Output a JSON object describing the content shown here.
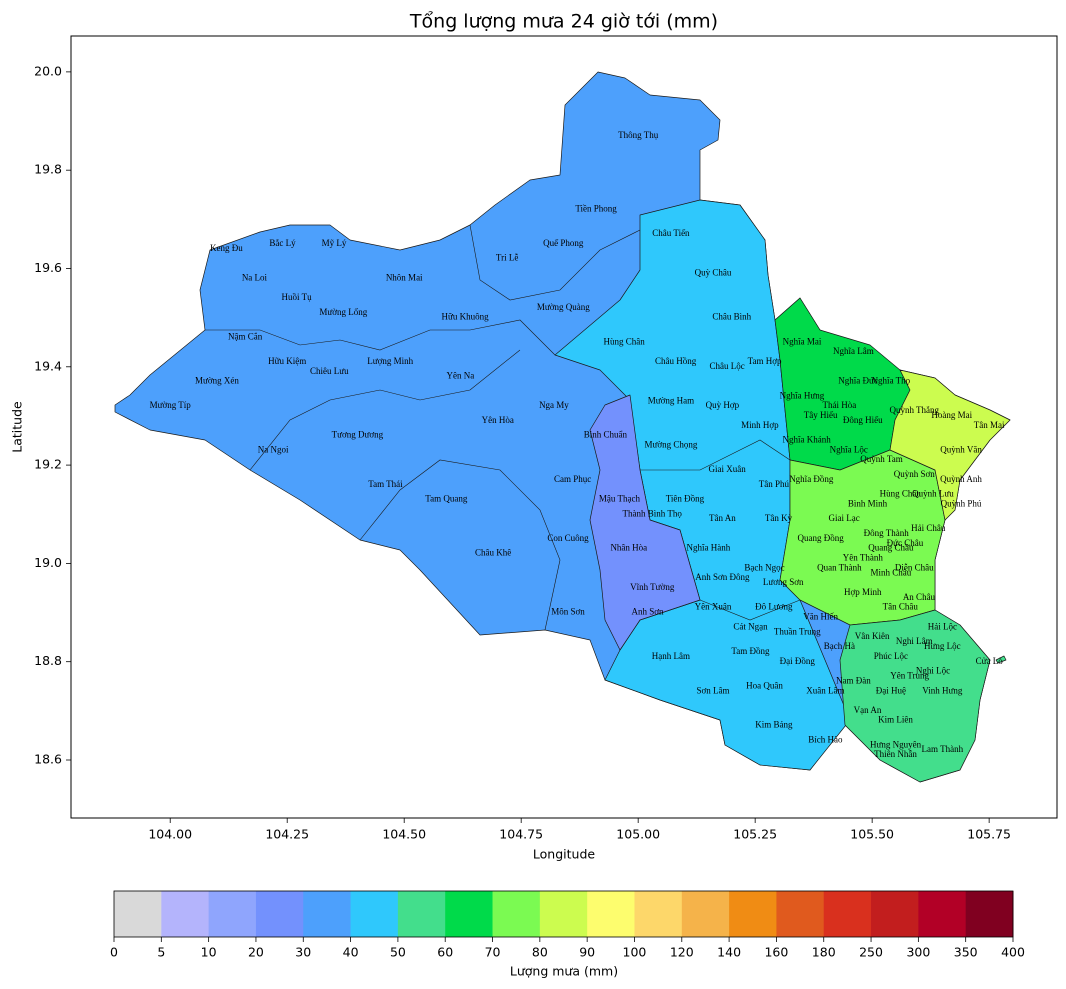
{
  "chart_data": {
    "type": "map",
    "title": "Tổng lượng mưa 24 giờ tới (mm)",
    "x_label": "Longitude",
    "y_label": "Latitude",
    "xlim": [
      103.788,
      105.895
    ],
    "ylim": [
      18.482,
      20.073
    ],
    "xticks": [
      {
        "value": 104,
        "label": "104.00"
      },
      {
        "value": 104.25,
        "label": "104.25"
      },
      {
        "value": 104.5,
        "label": "104.50"
      },
      {
        "value": 104.75,
        "label": "104.75"
      },
      {
        "value": 105,
        "label": "105.00"
      },
      {
        "value": 105.25,
        "label": "105.25"
      },
      {
        "value": 105.5,
        "label": "105.50"
      },
      {
        "value": 105.75,
        "label": "105.75"
      }
    ],
    "yticks": [
      18.6,
      18.8,
      {
        "value": 19,
        "label": "19.0"
      },
      19.2,
      19.4,
      19.6,
      19.8,
      {
        "value": 20,
        "label": "20.0"
      }
    ],
    "places": {
      "names": [
        "Thông Thụ",
        "Tiền Phong",
        "Châu Tiến",
        "Quế Phong",
        "Tri Lễ",
        "Quỳ Châu",
        "Keng Đu",
        "Bắc Lý",
        "Mỹ Lý",
        "Na Loi",
        "Nhôn Mai",
        "Huồi Tụ",
        "Mường Lống",
        "Hữu Khuông",
        "Mường Quàng",
        "Châu Bình",
        "Nậm Cắn",
        "Hùng Chân",
        "Nghĩa Mai",
        "Nghĩa Lâm",
        "Hữu Kiệm",
        "Lượng Minh",
        "Châu Hồng",
        "Tam Hợp",
        "Châu Lộc",
        "Chiêu Lưu",
        "Yên Na",
        "Mường Xén",
        "Nghĩa Đức",
        "Nghĩa Thọ",
        "Nghĩa Hưng",
        "Mường Típ",
        "Nga My",
        "Mường Ham",
        "Quỳ Hợp",
        "Thái Hòa",
        "Quỳnh Thắng",
        "Tây Hiếu",
        "Hoàng Mai",
        "Yên Hòa",
        "Đông Hiếu",
        "Tân Mai",
        "Minh Hợp",
        "Tương Dương",
        "Bình Chuẩn",
        "Nghĩa Khánh",
        "Mường Chọng",
        "Na Ngoi",
        "Nghĩa Lộc",
        "Quỳnh Văn",
        "Quỳnh Tam",
        "Giai Xuân",
        "Quỳnh Sơn",
        "Quỳnh Anh",
        "Tam Thái",
        "Cam Phục",
        "Tân Phú",
        "Nghĩa Đồng",
        "Quỳnh Lưu",
        "Hùng Châu",
        "Tam Quang",
        "Mậu Thạch",
        "Tiên Đồng",
        "Bình Minh",
        "Quỳnh Phú",
        "Thành Bình Thọ",
        "Tân An",
        "Giai Lạc",
        "Tân Kỳ",
        "Đông Thành",
        "Hải Châu",
        "Đức Châu",
        "Con Cuông",
        "Quang Đồng",
        "Quang Châu",
        "Nghĩa Hành",
        "Nhân Hòa",
        "Châu Khê",
        "Yên Thành",
        "Quan Thành",
        "Diễn Châu",
        "Bạch Ngọc",
        "Minh Châu",
        "Anh Sơn Đông",
        "Lương Sơn",
        "Vĩnh Tường",
        "Hợp Minh",
        "An Châu",
        "Đô Lương",
        "Yên Xuân",
        "Tân Châu",
        "Văn Hiến",
        "Môn Sơn",
        "Anh Sơn",
        "Cát Ngạn",
        "Thuần Trung",
        "Vân Kiên",
        "Hải Lộc",
        "Nghi Lâm",
        "Bạch Hà",
        "Hưng Lộc",
        "Tam Đồng",
        "Hạnh Lâm",
        "Đại Đồng",
        "Phúc Lộc",
        "Cửa Lò",
        "Nghi Lộc",
        "Nam Đàn",
        "Yên Trung",
        "Hoa Quân",
        "Sơn Lâm",
        "Xuân Lâm",
        "Đại Huệ",
        "Vinh Hưng",
        "Vạn An",
        "Kim Liên",
        "Kim Bảng",
        "Bích Hào",
        "Hưng Nguyên",
        "Lam Thành",
        "Thiên Nhẫn"
      ],
      "lon": [
        105.0,
        104.91,
        105.07,
        104.84,
        104.72,
        105.16,
        104.12,
        104.24,
        104.35,
        104.18,
        104.5,
        104.27,
        104.37,
        104.63,
        104.84,
        105.2,
        104.16,
        104.97,
        105.35,
        105.46,
        104.25,
        104.47,
        105.08,
        105.27,
        105.19,
        104.34,
        104.62,
        104.1,
        105.47,
        105.54,
        105.35,
        104.0,
        104.82,
        105.07,
        105.18,
        105.43,
        105.59,
        105.39,
        105.67,
        104.7,
        105.48,
        105.75,
        105.26,
        104.4,
        104.93,
        105.36,
        105.07,
        104.22,
        105.45,
        105.69,
        105.52,
        105.19,
        105.59,
        105.69,
        104.46,
        104.86,
        105.29,
        105.37,
        105.63,
        105.56,
        104.59,
        104.96,
        105.1,
        105.49,
        105.69,
        105.03,
        105.18,
        105.44,
        105.3,
        105.53,
        105.62,
        105.57,
        104.85,
        105.39,
        105.54,
        105.15,
        104.98,
        104.69,
        105.48,
        105.43,
        105.59,
        105.27,
        105.54,
        105.18,
        105.31,
        105.03,
        105.48,
        105.6,
        105.29,
        105.16,
        105.56,
        105.39,
        104.85,
        105.02,
        105.24,
        105.34,
        105.5,
        105.65,
        105.59,
        105.43,
        105.65,
        105.24,
        105.07,
        105.34,
        105.54,
        105.75,
        105.63,
        105.46,
        105.58,
        105.27,
        105.16,
        105.4,
        105.54,
        105.65,
        105.49,
        105.55,
        105.29,
        105.4,
        105.55,
        105.65,
        105.55
      ],
      "lat": [
        19.87,
        19.72,
        19.67,
        19.65,
        19.62,
        19.59,
        19.64,
        19.65,
        19.65,
        19.58,
        19.58,
        19.54,
        19.51,
        19.5,
        19.52,
        19.5,
        19.46,
        19.45,
        19.45,
        19.43,
        19.41,
        19.41,
        19.41,
        19.41,
        19.4,
        19.39,
        19.38,
        19.37,
        19.37,
        19.37,
        19.34,
        19.32,
        19.32,
        19.33,
        19.32,
        19.32,
        19.31,
        19.3,
        19.3,
        19.29,
        19.29,
        19.28,
        19.28,
        19.26,
        19.26,
        19.25,
        19.24,
        19.23,
        19.23,
        19.23,
        19.21,
        19.19,
        19.18,
        19.17,
        19.16,
        19.17,
        19.16,
        19.17,
        19.14,
        19.14,
        19.13,
        19.13,
        19.13,
        19.12,
        19.12,
        19.1,
        19.09,
        19.09,
        19.09,
        19.06,
        19.07,
        19.04,
        19.05,
        19.05,
        19.03,
        19.03,
        19.03,
        19.02,
        19.01,
        18.99,
        18.99,
        18.99,
        18.98,
        18.97,
        18.96,
        18.95,
        18.94,
        18.93,
        18.91,
        18.91,
        18.91,
        18.89,
        18.9,
        18.9,
        18.87,
        18.86,
        18.85,
        18.87,
        18.84,
        18.83,
        18.83,
        18.82,
        18.81,
        18.8,
        18.81,
        18.8,
        18.78,
        18.76,
        18.77,
        18.75,
        18.74,
        18.74,
        18.74,
        18.74,
        18.7,
        18.68,
        18.67,
        18.64,
        18.63,
        18.62,
        18.61
      ]
    },
    "colorbar": {
      "label": "Lượng mưa (mm)",
      "bounds": [
        0,
        5,
        10,
        20,
        30,
        40,
        50,
        60,
        70,
        80,
        90,
        100,
        120,
        140,
        160,
        180,
        250,
        300,
        350,
        400
      ],
      "colors": [
        "#d9d9d9",
        "#b4b4fc",
        "#8fa5fd",
        "#7391fd",
        "#4da0fc",
        "#2fc8fc",
        "#43de8c",
        "#00da4a",
        "#7bfa52",
        "#ccfc4f",
        "#fdfd6e",
        "#fdd76a",
        "#f5b34a",
        "#f08c14",
        "#e05a1e",
        "#d9301e",
        "#c21e1e",
        "#b20026",
        "#800020"
      ]
    }
  }
}
